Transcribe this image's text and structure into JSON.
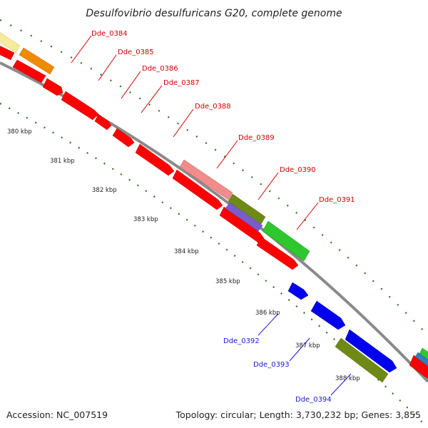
{
  "title": "Desulfovibrio desulfuricans G20, complete genome",
  "footer": {
    "accession": "Accession: NC_007519",
    "summary": "Topology: circular; Length: 3,730,232 bp; Genes: 3,855"
  },
  "ticks": [
    "380 kbp",
    "381 kbp",
    "382 kbp",
    "383 kbp",
    "384 kbp",
    "385 kbp",
    "386 kbp",
    "387 kbp",
    "388 kbp"
  ],
  "gene_labels": {
    "dde_0384": "Dde_0384",
    "dde_0385": "Dde_0385",
    "dde_0386": "Dde_0386",
    "dde_0387": "Dde_0387",
    "dde_0388": "Dde_0388",
    "dde_0389": "Dde_0389",
    "dde_0390": "Dde_0390",
    "dde_0391": "Dde_0391",
    "dde_0392": "Dde_0392",
    "dde_0393": "Dde_0393",
    "dde_0394": "Dde_0394"
  },
  "colors": {
    "backbone": "#8a8a8a",
    "red": "#ff0000",
    "orange": "#f08a00",
    "pale_yellow": "#f5eb9a",
    "pink": "#f28b8b",
    "purple": "#7a5ccc",
    "olive": "#6e8a14",
    "green": "#2ec82e",
    "blue": "#0000ee",
    "tick_green": "#2a6e2a",
    "label_fwd": "#d40000",
    "label_rev": "#1a1acc"
  }
}
